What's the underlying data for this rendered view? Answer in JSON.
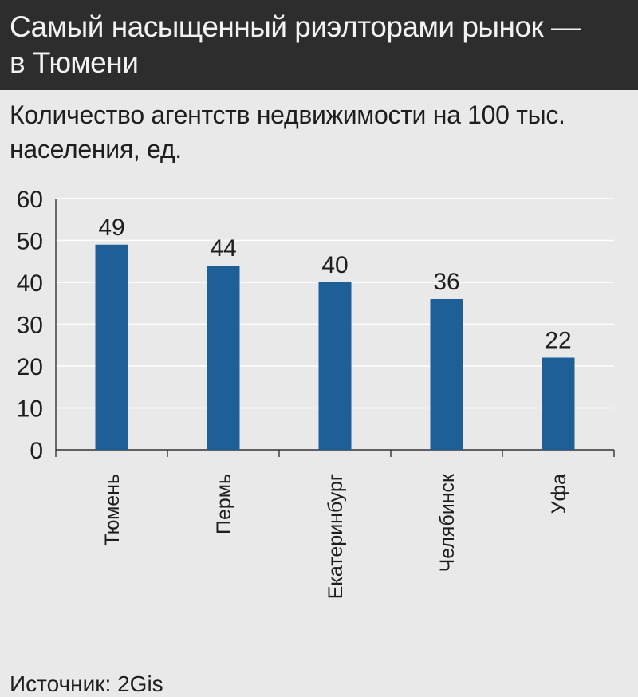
{
  "header": {
    "title_line1": "Самый насыщенный риэлторами рынок —",
    "title_line2": "в Тюмени"
  },
  "subtitle": {
    "line1": "Количество агентств недвижимости на 100 тыс.",
    "line2": "населения, ед."
  },
  "source": "Источник: 2Gis",
  "colors": {
    "header_bg": "#2d2d2d",
    "bar": "#1d5f96",
    "background": "#e9e9e9"
  },
  "chart_data": {
    "type": "bar",
    "categories": [
      "Тюмень",
      "Пермь",
      "Екатеринбург",
      "Челябинск",
      "Уфа"
    ],
    "values": [
      49,
      44,
      40,
      36,
      22
    ],
    "data_labels": [
      "49",
      "44",
      "40",
      "36",
      "22"
    ],
    "yticks": [
      0,
      10,
      20,
      30,
      40,
      50,
      60
    ],
    "ylim": [
      0,
      60
    ],
    "grid": true,
    "x_labels_rotation": "vertical"
  }
}
